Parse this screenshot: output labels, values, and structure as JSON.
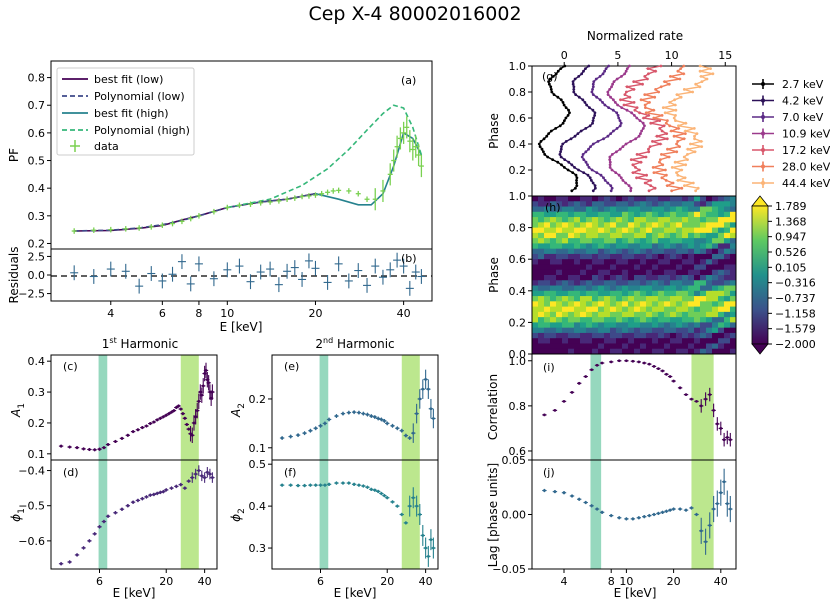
{
  "title": "Cep X-4 80002016002",
  "colors": {
    "purple_dark": "#440154",
    "purple": "#482878",
    "indigo": "#3e4989",
    "teal": "#31688e",
    "teal2": "#26828e",
    "green": "#6ece58",
    "band_teal": "#2db27d",
    "band_green": "#90d743",
    "lightgreen": "#7ad151"
  },
  "panel_a": {
    "label": "(a)",
    "ylabel": "PF",
    "yticks": [
      "0.2",
      "0.3",
      "0.4",
      "0.5",
      "0.6",
      "0.7",
      "0.8"
    ],
    "legend": [
      "best fit (low)",
      "Polynomial (low)",
      "best fit (high)",
      "Polynomial (high)",
      "data"
    ]
  },
  "panel_b": {
    "label": "(b)",
    "ylabel": "Residuals",
    "yticks": [
      "2.5",
      "0.0",
      "−2.5"
    ],
    "xticks": [
      "4",
      "6",
      "8",
      "10",
      "20",
      "40"
    ],
    "xlabel": "E [keV]"
  },
  "panel_c": {
    "label": "(c)",
    "title_pre": "1",
    "title_sup": "st",
    "title_post": " Harmonic",
    "ylabel": "A",
    "ysub": "1",
    "yticks": [
      "0.1",
      "0.2",
      "0.3",
      "0.4"
    ]
  },
  "panel_d": {
    "label": "(d)",
    "ylabel": "ϕ",
    "ysub": "1",
    "yticks": [
      "−0.4",
      "−0.5",
      "−0.6"
    ],
    "xticks": [
      "6",
      "20",
      "40"
    ],
    "xlabel": "E [keV]"
  },
  "panel_e": {
    "label": "(e)",
    "title_pre": "2",
    "title_sup": "nd",
    "title_post": " Harmonic",
    "ylabel": "A",
    "ysub": "2",
    "yticks": [
      "0.1",
      "0.2"
    ]
  },
  "panel_f": {
    "label": "(f)",
    "ylabel": "ϕ",
    "ysub": "2",
    "yticks": [
      "0.5",
      "0.4",
      "0.3"
    ],
    "xticks": [
      "6",
      "20",
      "40"
    ],
    "xlabel": "E [keV]"
  },
  "panel_g": {
    "label": "(g)",
    "ylabel": "Phase",
    "xlabel_top": "Normalized rate",
    "xticks": [
      "0",
      "5",
      "10",
      "15"
    ],
    "yticks": [
      "0.2",
      "0.4",
      "0.6",
      "0.8",
      "1.0"
    ],
    "legend": [
      "2.7 keV",
      "4.2 keV",
      "7.0 keV",
      "10.9 keV",
      "17.2 keV",
      "28.0 keV",
      "44.4 keV"
    ]
  },
  "panel_h": {
    "label": "(h)",
    "ylabel": "Phase",
    "yticks": [
      "0.0",
      "0.2",
      "0.4",
      "0.6",
      "0.8",
      "1.0"
    ],
    "colorbar": [
      "1.789",
      "1.368",
      "0.947",
      "0.526",
      "0.105",
      "−0.316",
      "−0.737",
      "−1.158",
      "−1.579",
      "−2.000"
    ]
  },
  "panel_i": {
    "label": "(i)",
    "ylabel": "Correlation",
    "yticks": [
      "0.6",
      "0.8",
      "1.0"
    ]
  },
  "panel_j": {
    "label": "(j)",
    "ylabel": "Lag [phase units]",
    "yticks": [
      "0.05",
      "0.00",
      "−0.05"
    ],
    "xticks": [
      "4",
      "8",
      "10",
      "20",
      "40"
    ],
    "xlabel": "E [keV]"
  },
  "chart_data": [
    {
      "type": "line",
      "panel": "a",
      "xscale": "log",
      "xlim": [
        2.5,
        50
      ],
      "ylim": [
        0.18,
        0.86
      ],
      "series": [
        {
          "name": "best fit (low)",
          "x": [
            3,
            4,
            5,
            6,
            6.5,
            7,
            8,
            10,
            13,
            16,
            20
          ],
          "y": [
            0.245,
            0.247,
            0.255,
            0.265,
            0.275,
            0.285,
            0.3,
            0.33,
            0.35,
            0.36,
            0.38
          ]
        },
        {
          "name": "Polynomial (low)",
          "x": [
            3,
            4,
            5,
            6,
            7,
            8,
            10,
            13,
            16,
            20
          ],
          "y": [
            0.245,
            0.248,
            0.256,
            0.268,
            0.283,
            0.3,
            0.33,
            0.35,
            0.36,
            0.38
          ]
        },
        {
          "name": "best fit (high)",
          "x": [
            20,
            24,
            28,
            31,
            34,
            37,
            40,
            43,
            46
          ],
          "y": [
            0.38,
            0.36,
            0.34,
            0.34,
            0.38,
            0.48,
            0.6,
            0.58,
            0.52
          ]
        },
        {
          "name": "Polynomial (high)",
          "x": [
            10,
            14,
            18,
            22,
            26,
            30,
            34,
            37,
            40,
            43,
            46
          ],
          "y": [
            0.33,
            0.36,
            0.41,
            0.47,
            0.54,
            0.61,
            0.67,
            0.7,
            0.69,
            0.62,
            0.52
          ]
        },
        {
          "name": "data",
          "x": [
            3,
            3.5,
            4,
            4.5,
            5,
            5.5,
            6,
            6.5,
            7,
            7.5,
            8,
            9,
            10,
            11,
            12,
            13,
            14,
            15,
            16,
            17,
            18,
            19,
            20,
            21,
            22,
            23,
            24,
            26,
            28,
            30,
            32,
            34,
            36,
            37,
            38,
            39,
            40,
            41,
            42,
            43,
            44,
            45,
            46
          ],
          "y": [
            0.245,
            0.248,
            0.25,
            0.253,
            0.256,
            0.26,
            0.266,
            0.272,
            0.28,
            0.29,
            0.3,
            0.315,
            0.33,
            0.338,
            0.342,
            0.347,
            0.35,
            0.354,
            0.36,
            0.364,
            0.37,
            0.372,
            0.375,
            0.38,
            0.385,
            0.39,
            0.392,
            0.39,
            0.38,
            0.36,
            0.36,
            0.39,
            0.45,
            0.5,
            0.55,
            0.58,
            0.6,
            0.62,
            0.57,
            0.54,
            0.55,
            0.52,
            0.48
          ]
        }
      ]
    },
    {
      "type": "scatter",
      "panel": "b",
      "xscale": "log",
      "ylim": [
        -3.5,
        3.5
      ],
      "series": [
        {
          "name": "residuals",
          "x": [
            3,
            3.5,
            4,
            4.5,
            5,
            5.5,
            6,
            6.5,
            7,
            7.5,
            8,
            9,
            10,
            11,
            12,
            13,
            14,
            15,
            16,
            17,
            18,
            19,
            20,
            22,
            24,
            26,
            28,
            30,
            32,
            34,
            36,
            38,
            40,
            42,
            44,
            46
          ],
          "y": [
            0.3,
            -0.2,
            0.8,
            0.5,
            -1.5,
            0.2,
            -0.8,
            0.1,
            1.8,
            -1.2,
            1.5,
            -0.5,
            0.7,
            1.2,
            -0.9,
            0.4,
            0.8,
            -1.3,
            0.5,
            1.0,
            -0.6,
            1.9,
            0.9,
            -1.0,
            1.5,
            -0.8,
            0.6,
            -1.4,
            1.2,
            -0.3,
            0.7,
            2.0,
            1.2,
            -1.8,
            0.4,
            -0.2
          ]
        }
      ]
    },
    {
      "type": "scatter",
      "panel": "c",
      "xscale": "log",
      "ylim": [
        0.08,
        0.42
      ],
      "bands_keV": [
        [
          5.9,
          6.9
        ],
        [
          26,
          36
        ]
      ],
      "series": [
        {
          "name": "A1",
          "x": [
            3,
            3.5,
            4,
            4.5,
            5,
            5.5,
            6,
            6.5,
            7,
            8,
            9,
            10,
            11,
            12,
            13,
            14,
            15,
            16,
            17,
            18,
            19,
            20,
            21,
            22,
            23,
            24,
            25,
            26,
            27,
            28,
            29,
            30,
            31,
            32,
            33,
            34,
            35,
            36,
            37,
            38,
            39,
            40,
            41,
            42,
            43,
            44,
            45,
            46
          ],
          "y": [
            0.125,
            0.122,
            0.12,
            0.116,
            0.114,
            0.113,
            0.115,
            0.12,
            0.13,
            0.14,
            0.15,
            0.16,
            0.172,
            0.178,
            0.185,
            0.19,
            0.198,
            0.203,
            0.21,
            0.215,
            0.22,
            0.225,
            0.23,
            0.235,
            0.24,
            0.25,
            0.255,
            0.245,
            0.23,
            0.215,
            0.195,
            0.18,
            0.165,
            0.16,
            0.2,
            0.22,
            0.24,
            0.27,
            0.3,
            0.29,
            0.32,
            0.36,
            0.37,
            0.34,
            0.33,
            0.3,
            0.28,
            0.3
          ]
        }
      ]
    },
    {
      "type": "scatter",
      "panel": "d",
      "xscale": "log",
      "ylim": [
        -0.68,
        -0.37
      ],
      "bands_keV": [
        [
          5.9,
          6.9
        ],
        [
          26,
          36
        ]
      ],
      "series": [
        {
          "name": "phi1",
          "x": [
            3,
            3.5,
            4,
            4.5,
            5,
            5.5,
            6,
            6.5,
            7,
            8,
            9,
            10,
            11,
            12,
            13,
            14,
            15,
            16,
            17,
            18,
            19,
            20,
            22,
            24,
            26,
            28,
            30,
            32,
            34,
            36,
            38,
            40,
            42,
            44,
            46
          ],
          "y": [
            -0.665,
            -0.66,
            -0.64,
            -0.62,
            -0.6,
            -0.58,
            -0.56,
            -0.545,
            -0.53,
            -0.52,
            -0.51,
            -0.5,
            -0.49,
            -0.485,
            -0.48,
            -0.475,
            -0.47,
            -0.468,
            -0.465,
            -0.462,
            -0.46,
            -0.455,
            -0.45,
            -0.445,
            -0.44,
            -0.45,
            -0.43,
            -0.42,
            -0.41,
            -0.4,
            -0.415,
            -0.42,
            -0.405,
            -0.41,
            -0.42
          ]
        }
      ]
    },
    {
      "type": "scatter",
      "panel": "e",
      "xscale": "log",
      "ylim": [
        0.075,
        0.29
      ],
      "bands_keV": [
        [
          5.9,
          6.9
        ],
        [
          26,
          36
        ]
      ],
      "series": [
        {
          "name": "A2",
          "x": [
            3,
            3.5,
            4,
            4.5,
            5,
            5.5,
            6,
            6.5,
            7,
            8,
            9,
            10,
            11,
            12,
            13,
            14,
            15,
            16,
            17,
            18,
            19,
            20,
            22,
            24,
            26,
            28,
            30,
            32,
            34,
            36,
            38,
            40,
            42,
            44,
            46
          ],
          "y": [
            0.12,
            0.123,
            0.126,
            0.13,
            0.135,
            0.14,
            0.145,
            0.15,
            0.158,
            0.165,
            0.17,
            0.172,
            0.173,
            0.172,
            0.17,
            0.168,
            0.165,
            0.163,
            0.16,
            0.158,
            0.155,
            0.15,
            0.145,
            0.14,
            0.135,
            0.125,
            0.12,
            0.13,
            0.17,
            0.2,
            0.22,
            0.24,
            0.22,
            0.18,
            0.16
          ]
        }
      ]
    },
    {
      "type": "scatter",
      "panel": "f",
      "xscale": "log",
      "ylim": [
        0.25,
        0.51
      ],
      "bands_keV": [
        [
          5.9,
          6.9
        ],
        [
          26,
          36
        ]
      ],
      "series": [
        {
          "name": "phi2",
          "x": [
            3,
            3.5,
            4,
            4.5,
            5,
            5.5,
            6,
            6.5,
            7,
            8,
            9,
            10,
            11,
            12,
            13,
            14,
            15,
            16,
            17,
            18,
            19,
            20,
            22,
            24,
            26,
            28,
            30,
            32,
            34,
            36,
            38,
            40,
            42,
            44,
            46
          ],
          "y": [
            0.45,
            0.45,
            0.449,
            0.449,
            0.45,
            0.45,
            0.45,
            0.45,
            0.452,
            0.455,
            0.455,
            0.455,
            0.452,
            0.45,
            0.448,
            0.445,
            0.44,
            0.438,
            0.435,
            0.43,
            0.425,
            0.42,
            0.41,
            0.4,
            0.38,
            0.36,
            0.4,
            0.42,
            0.4,
            0.38,
            0.33,
            0.3,
            0.28,
            0.32,
            0.3
          ]
        }
      ]
    },
    {
      "type": "line",
      "panel": "g",
      "xlim": [
        -3,
        16
      ],
      "ylim": [
        0,
        1
      ],
      "series": [
        {
          "name": "2.7 keV",
          "offset": 0
        },
        {
          "name": "4.2 keV",
          "offset": 2
        },
        {
          "name": "7.0 keV",
          "offset": 4
        },
        {
          "name": "10.9 keV",
          "offset": 6
        },
        {
          "name": "17.2 keV",
          "offset": 8
        },
        {
          "name": "28.0 keV",
          "offset": 10
        },
        {
          "name": "44.4 keV",
          "offset": 12
        }
      ]
    },
    {
      "type": "heatmap",
      "panel": "h",
      "xscale": "log",
      "ylim": [
        0,
        1
      ],
      "zlim": [
        -2.0,
        1.789
      ]
    },
    {
      "type": "scatter",
      "panel": "i",
      "xscale": "log",
      "ylim": [
        0.56,
        1.03
      ],
      "bands_keV": [
        [
          5.9,
          6.9
        ],
        [
          26,
          36
        ]
      ],
      "series": [
        {
          "name": "correlation",
          "x": [
            3,
            3.5,
            4,
            4.5,
            5,
            5.5,
            6,
            6.5,
            7,
            8,
            9,
            10,
            11,
            12,
            13,
            14,
            15,
            16,
            17,
            18,
            19,
            20,
            22,
            24,
            26,
            28,
            30,
            32,
            34,
            36,
            38,
            40,
            42,
            44,
            46
          ],
          "y": [
            0.76,
            0.78,
            0.82,
            0.86,
            0.9,
            0.93,
            0.96,
            0.98,
            0.99,
            0.995,
            1.0,
            1.0,
            0.998,
            0.995,
            0.99,
            0.985,
            0.975,
            0.965,
            0.955,
            0.94,
            0.93,
            0.91,
            0.88,
            0.85,
            0.83,
            0.82,
            0.8,
            0.83,
            0.85,
            0.78,
            0.72,
            0.7,
            0.65,
            0.66,
            0.65
          ]
        }
      ]
    },
    {
      "type": "scatter",
      "panel": "j",
      "xscale": "log",
      "ylim": [
        -0.05,
        0.05
      ],
      "bands_keV": [
        [
          5.9,
          6.9
        ],
        [
          26,
          36
        ]
      ],
      "series": [
        {
          "name": "lag",
          "x": [
            3,
            3.5,
            4,
            4.5,
            5,
            5.5,
            6,
            6.5,
            7,
            8,
            9,
            10,
            11,
            12,
            13,
            14,
            15,
            16,
            17,
            18,
            19,
            20,
            22,
            24,
            26,
            28,
            30,
            32,
            34,
            36,
            38,
            40,
            42,
            44,
            46
          ],
          "y": [
            0.022,
            0.021,
            0.02,
            0.017,
            0.014,
            0.011,
            0.008,
            0.005,
            0.002,
            -0.001,
            -0.003,
            -0.004,
            -0.004,
            -0.003,
            -0.002,
            -0.001,
            0.0,
            0.001,
            0.002,
            0.003,
            0.004,
            0.005,
            0.005,
            0.004,
            0.006,
            0.0,
            -0.015,
            -0.025,
            -0.01,
            0.005,
            0.01,
            0.02,
            0.03,
            0.01,
            0.005
          ]
        }
      ]
    }
  ]
}
